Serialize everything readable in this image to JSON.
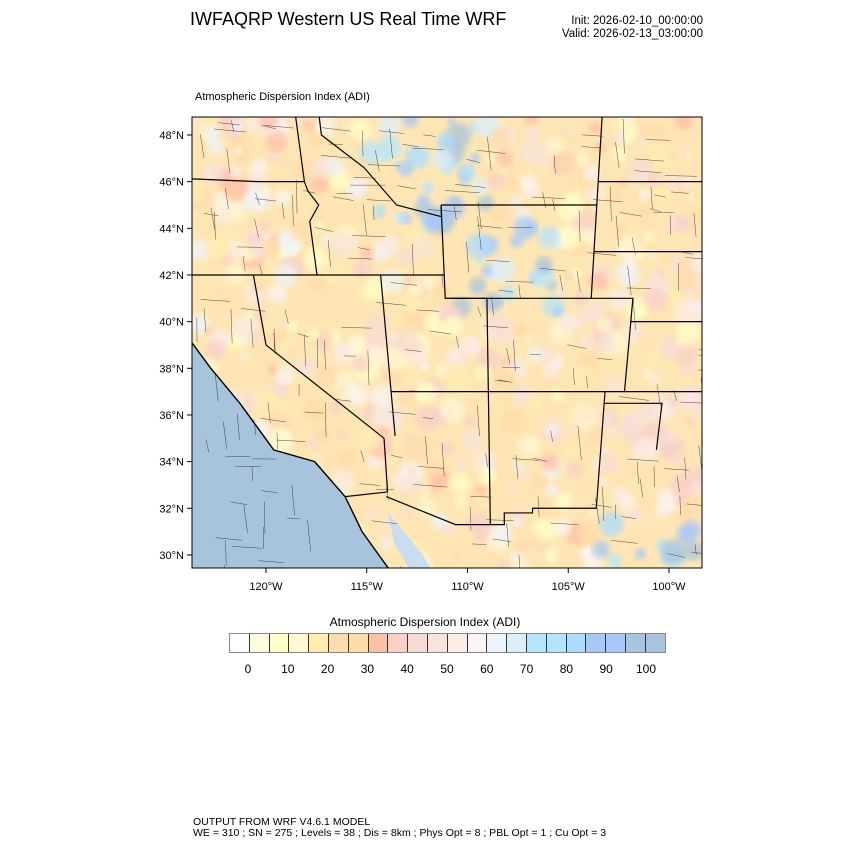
{
  "header": {
    "title": "IWFAQRP Western US Real Time WRF",
    "init": "Init: 2026-02-10_00:00:00",
    "valid": "Valid: 2026-02-13_03:00:00"
  },
  "map": {
    "field_title": "Atmospheric Dispersion Index   (ADI)",
    "lat_labels": [
      "48°N",
      "46°N",
      "44°N",
      "42°N",
      "40°N",
      "38°N",
      "36°N",
      "34°N",
      "32°N",
      "30°N"
    ],
    "lat_values": [
      48,
      46,
      44,
      42,
      40,
      38,
      36,
      34,
      32,
      30
    ],
    "lon_labels": [
      "120°W",
      "115°W",
      "110°W",
      "105°W",
      "100°W"
    ],
    "lon_values": [
      -120,
      -115,
      -110,
      -105,
      -100
    ],
    "ocean_color": "#a8c4dc",
    "land_base_color": "#fde6b4"
  },
  "colorbar": {
    "title": "Atmospheric Dispersion Index  (ADI)",
    "labels": [
      "0",
      "10",
      "20",
      "30",
      "40",
      "50",
      "60",
      "70",
      "80",
      "90",
      "100"
    ],
    "colors": [
      "#ffffff",
      "#fffbe0",
      "#ffffc8",
      "#fff8d4",
      "#ffedb0",
      "#ffdcb0",
      "#ffdca8",
      "#ffc0a8",
      "#f8d0c8",
      "#f8dcd4",
      "#f8e4dc",
      "#fcece8",
      "#fcf4f4",
      "#eef4fc",
      "#dceefc",
      "#b4e6fc",
      "#b4e4fc",
      "#acdcfc",
      "#a8c8f8",
      "#a8c8fc",
      "#a8c4e4",
      "#a8c4dc"
    ]
  },
  "footer": {
    "line1": "OUTPUT FROM WRF V4.6.1 MODEL",
    "line2": "WE = 310 ; SN = 275 ; Levels = 38 ; Dis = 8km ; Phys Opt = 8 ; PBL Opt = 1 ; Cu Opt = 3"
  }
}
